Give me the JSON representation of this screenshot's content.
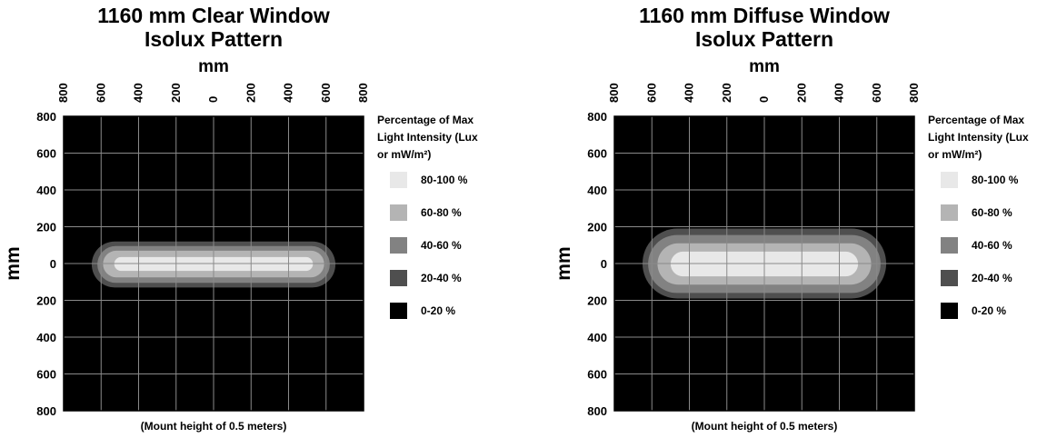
{
  "legend": {
    "title_lines": [
      "Percentage of Max",
      "Light Intensity (Lux",
      "or mW/m²)"
    ],
    "items": [
      {
        "label": "80-100 %",
        "color": "#e8e8e8"
      },
      {
        "label": "60-80 %",
        "color": "#b4b4b4"
      },
      {
        "label": "40-60 %",
        "color": "#828282"
      },
      {
        "label": "20-40 %",
        "color": "#4f4f4f"
      },
      {
        "label": "0-20 %",
        "color": "#000000"
      }
    ]
  },
  "chart_data": [
    {
      "type": "heatmap",
      "title_lines": [
        "1160 mm Clear Window",
        "Isolux Pattern"
      ],
      "xlabel": "mm",
      "ylabel": "mm",
      "caption": "(Mount height of 0.5 meters)",
      "x_tick_labels": [
        "800",
        "600",
        "400",
        "200",
        "0",
        "200",
        "400",
        "600",
        "800"
      ],
      "y_tick_labels": [
        "800",
        "600",
        "400",
        "200",
        "0",
        "200",
        "400",
        "600",
        "800"
      ],
      "xlim": [
        -800,
        800
      ],
      "ylim": [
        -800,
        800
      ],
      "grid": true,
      "background": "#000000",
      "contours": [
        {
          "band": "20-40 %",
          "color": "#4f4f4f",
          "x": [
            -650,
            650
          ],
          "y": [
            -130,
            120
          ]
        },
        {
          "band": "40-60 %",
          "color": "#828282",
          "x": [
            -620,
            620
          ],
          "y": [
            -105,
            95
          ]
        },
        {
          "band": "60-80 %",
          "color": "#b4b4b4",
          "x": [
            -590,
            590
          ],
          "y": [
            -75,
            70
          ]
        },
        {
          "band": "80-100 %",
          "color": "#e8e8e8",
          "x": [
            -530,
            530
          ],
          "y": [
            -40,
            35
          ]
        }
      ]
    },
    {
      "type": "heatmap",
      "title_lines": [
        "1160 mm Diffuse Window",
        "Isolux Pattern"
      ],
      "xlabel": "mm",
      "ylabel": "mm",
      "caption": "(Mount height of 0.5 meters)",
      "x_tick_labels": [
        "800",
        "600",
        "400",
        "200",
        "0",
        "200",
        "400",
        "600",
        "800"
      ],
      "y_tick_labels": [
        "800",
        "600",
        "400",
        "200",
        "0",
        "200",
        "400",
        "600",
        "800"
      ],
      "xlim": [
        -800,
        800
      ],
      "ylim": [
        -800,
        800
      ],
      "grid": true,
      "background": "#000000",
      "contours": [
        {
          "band": "20-40 %",
          "color": "#4f4f4f",
          "x": [
            -650,
            650
          ],
          "y": [
            -190,
            190
          ]
        },
        {
          "band": "40-60 %",
          "color": "#828282",
          "x": [
            -620,
            620
          ],
          "y": [
            -160,
            155
          ]
        },
        {
          "band": "60-80 %",
          "color": "#b4b4b4",
          "x": [
            -570,
            570
          ],
          "y": [
            -115,
            110
          ]
        },
        {
          "band": "80-100 %",
          "color": "#e8e8e8",
          "x": [
            -500,
            500
          ],
          "y": [
            -70,
            65
          ]
        }
      ]
    }
  ]
}
